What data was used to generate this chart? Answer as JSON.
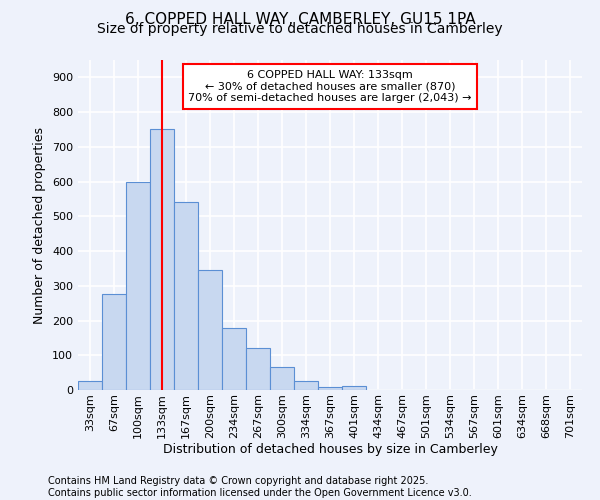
{
  "title": "6, COPPED HALL WAY, CAMBERLEY, GU15 1PA",
  "subtitle": "Size of property relative to detached houses in Camberley",
  "xlabel": "Distribution of detached houses by size in Camberley",
  "ylabel": "Number of detached properties",
  "bar_labels": [
    "33sqm",
    "67sqm",
    "100sqm",
    "133sqm",
    "167sqm",
    "200sqm",
    "234sqm",
    "267sqm",
    "300sqm",
    "334sqm",
    "367sqm",
    "401sqm",
    "434sqm",
    "467sqm",
    "501sqm",
    "534sqm",
    "567sqm",
    "601sqm",
    "634sqm",
    "668sqm",
    "701sqm"
  ],
  "bar_values": [
    25,
    275,
    600,
    750,
    540,
    345,
    178,
    120,
    65,
    25,
    10,
    12,
    0,
    0,
    0,
    0,
    0,
    0,
    0,
    0,
    0
  ],
  "bar_color": "#c8d8f0",
  "bar_edge_color": "#5b8fd4",
  "vline_x_idx": 3,
  "vline_color": "red",
  "annotation_text": "6 COPPED HALL WAY: 133sqm\n← 30% of detached houses are smaller (870)\n70% of semi-detached houses are larger (2,043) →",
  "annotation_box_color": "white",
  "annotation_box_edge": "red",
  "ylim": [
    0,
    950
  ],
  "yticks": [
    0,
    100,
    200,
    300,
    400,
    500,
    600,
    700,
    800,
    900
  ],
  "footer_line1": "Contains HM Land Registry data © Crown copyright and database right 2025.",
  "footer_line2": "Contains public sector information licensed under the Open Government Licence v3.0.",
  "background_color": "#eef2fb",
  "grid_color": "white",
  "title_fontsize": 11,
  "subtitle_fontsize": 10,
  "axis_label_fontsize": 9,
  "tick_fontsize": 8,
  "footer_fontsize": 7,
  "annot_fontsize": 8
}
